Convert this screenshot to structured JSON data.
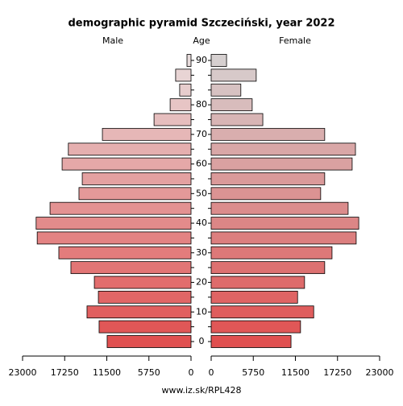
{
  "chart_data": {
    "type": "pyramid",
    "title": "demographic pyramid Szczeciński, year 2022",
    "left_label": "Male",
    "center_label": "Age",
    "right_label": "Female",
    "source": "www.iz.sk/RPL428",
    "categories": [
      "0",
      null,
      "10",
      null,
      "20",
      null,
      "30",
      null,
      "40",
      null,
      "50",
      null,
      "60",
      null,
      "70",
      null,
      "80",
      null,
      null,
      "90"
    ],
    "xlim": [
      0,
      23000
    ],
    "xticks": [
      0,
      5750,
      11500,
      17250,
      23000
    ],
    "series": [
      {
        "name": "Male",
        "values": [
          11450,
          12550,
          14200,
          12650,
          13200,
          16400,
          18050,
          21000,
          21150,
          19250,
          15300,
          14850,
          17600,
          16750,
          12100,
          5050,
          2850,
          1550,
          2100,
          550
        ],
        "colors": [
          "#e05050",
          "#e05757",
          "#e15f5f",
          "#e16666",
          "#e26d6d",
          "#e27575",
          "#e37c7c",
          "#e38383",
          "#e38b8b",
          "#e39292",
          "#e49999",
          "#e4a1a1",
          "#e5a8a8",
          "#e5afaf",
          "#e6b7b7",
          "#e6bebe",
          "#e7c5c5",
          "#e7cdcd",
          "#e8d4d4",
          "#e8dcdc"
        ]
      },
      {
        "name": "Female",
        "values": [
          10900,
          12200,
          14000,
          11800,
          12750,
          15500,
          16500,
          19800,
          20150,
          18700,
          14950,
          15500,
          19250,
          19700,
          15500,
          7050,
          5600,
          4050,
          6150,
          2100
        ],
        "colors": [
          "#e05050",
          "#e05757",
          "#df5d5d",
          "#df6464",
          "#de6b6b",
          "#dd7171",
          "#dd7878",
          "#dc7f7f",
          "#dc8686",
          "#db8c8c",
          "#db9393",
          "#da9a9a",
          "#daa1a1",
          "#d9a7a7",
          "#d9aeae",
          "#d8b5b5",
          "#d8bcbc",
          "#d7c2c2",
          "#d7c9c9",
          "#d6d0d0"
        ]
      }
    ]
  }
}
